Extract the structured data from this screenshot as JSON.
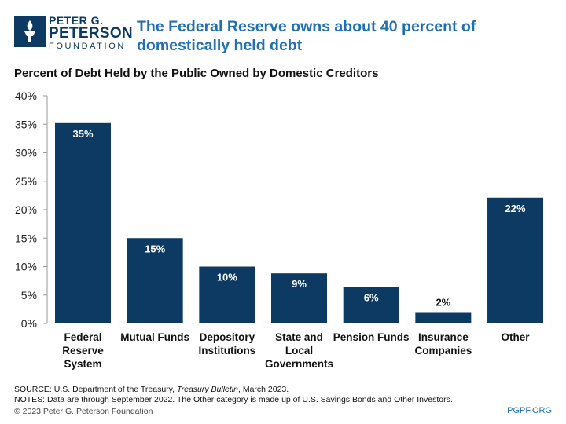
{
  "org": {
    "line1": "PETER G.",
    "line2": "PETERSON",
    "line3": "FOUNDATION"
  },
  "headline": "The Federal Reserve owns about 40 percent of domestically held debt",
  "chart_data": {
    "type": "bar",
    "title": "Percent of Debt Held by the Public Owned by Domestic Creditors",
    "categories": [
      [
        "Federal",
        "Reserve",
        "System"
      ],
      [
        "Mutual Funds"
      ],
      [
        "Depository",
        "Institutions"
      ],
      [
        "State and",
        "Local",
        "Governments"
      ],
      [
        "Pension Funds"
      ],
      [
        "Insurance",
        "Companies"
      ],
      [
        "Other"
      ]
    ],
    "values": [
      35.2,
      15.0,
      10.0,
      8.8,
      6.4,
      2.0,
      22.1
    ],
    "data_labels": [
      "35%",
      "15%",
      "10%",
      "9%",
      "6%",
      "2%",
      "22%"
    ],
    "ylim": [
      0,
      40
    ],
    "yticks": [
      "0%",
      "5%",
      "10%",
      "15%",
      "20%",
      "25%",
      "30%",
      "35%",
      "40%"
    ],
    "xlabel": "",
    "ylabel": "",
    "grid": false,
    "bar_color": "#0c3a63"
  },
  "footer": {
    "source_prefix": "SOURCE: U.S. Department of the Treasury, ",
    "source_pub": "Treasury Bulletin",
    "source_suffix": ", March 2023.",
    "notes": "NOTES: Data are through September 2022. The Other category is made up of U.S. Savings Bonds and Other Investors.",
    "copyright": "© 2023 Peter G. Peterson Foundation",
    "site": "PGPF.ORG"
  }
}
